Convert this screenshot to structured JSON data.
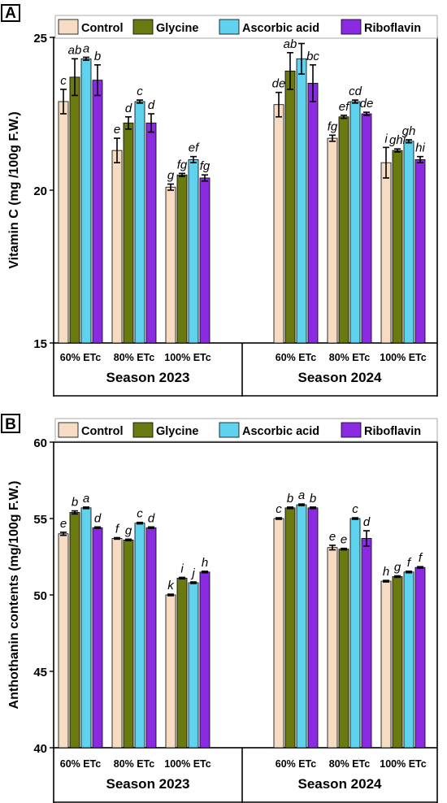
{
  "colors": {
    "Control": "#f6dcc3",
    "Glycine": "#6b7a10",
    "Ascorbic acid": "#5fd2ee",
    "Riboflavin": "#8a2be2"
  },
  "chart_data": [
    {
      "type": "bar",
      "panel_label": "A",
      "ylabel": "Vitamin C (mg /100g F.W.)",
      "ylim": [
        15,
        25
      ],
      "yticks": [
        "15",
        "20",
        "25"
      ],
      "legend_position": "top",
      "groups": [
        {
          "season": "Season 2023",
          "categories": [
            "60% ETc",
            "80% ETc",
            "100% ETc"
          ],
          "series": [
            {
              "name": "Control",
              "values": [
                22.9,
                21.3,
                20.1
              ],
              "errors": [
                0.4,
                0.4,
                0.1
              ],
              "letters": [
                "c",
                "e",
                "g"
              ]
            },
            {
              "name": "Glycine",
              "values": [
                23.7,
                22.2,
                20.5
              ],
              "errors": [
                0.6,
                0.2,
                0.05
              ],
              "letters": [
                "ab",
                "d",
                "fg"
              ]
            },
            {
              "name": "Ascorbic acid",
              "values": [
                24.3,
                22.9,
                21.0
              ],
              "errors": [
                0.05,
                0.05,
                0.1
              ],
              "letters": [
                "a",
                "c",
                "ef"
              ]
            },
            {
              "name": "Riboflavin",
              "values": [
                23.6,
                22.2,
                20.4
              ],
              "errors": [
                0.5,
                0.3,
                0.1
              ],
              "letters": [
                "b",
                "d",
                "fg"
              ]
            }
          ]
        },
        {
          "season": "Season 2024",
          "categories": [
            "60% ETc",
            "80% ETc",
            "100% ETc"
          ],
          "series": [
            {
              "name": "Control",
              "values": [
                22.8,
                21.7,
                20.9
              ],
              "errors": [
                0.4,
                0.1,
                0.5
              ],
              "letters": [
                "de",
                "fg",
                "i"
              ]
            },
            {
              "name": "Glycine",
              "values": [
                23.9,
                22.4,
                21.3
              ],
              "errors": [
                0.6,
                0.05,
                0.05
              ],
              "letters": [
                "ab",
                "ef",
                "ghi"
              ]
            },
            {
              "name": "Ascorbic acid",
              "values": [
                24.3,
                22.9,
                21.6
              ],
              "errors": [
                0.5,
                0.05,
                0.05
              ],
              "letters": [
                "a",
                "cd",
                "gh"
              ]
            },
            {
              "name": "Riboflavin",
              "values": [
                23.5,
                22.5,
                21.0
              ],
              "errors": [
                0.6,
                0.05,
                0.1
              ],
              "letters": [
                "bc",
                "de",
                "hi"
              ]
            }
          ]
        }
      ]
    },
    {
      "type": "bar",
      "panel_label": "B",
      "ylabel": "Anthothanin contents (mg/100g F.W.)",
      "ylim": [
        40,
        60
      ],
      "yticks": [
        "40",
        "45",
        "50",
        "55",
        "60"
      ],
      "legend_position": "top",
      "groups": [
        {
          "season": "Season 2023",
          "categories": [
            "60% ETc",
            "80% ETc",
            "100% ETc"
          ],
          "series": [
            {
              "name": "Control",
              "values": [
                54.0,
                53.7,
                50.0
              ],
              "errors": [
                0.1,
                0.05,
                0.05
              ],
              "letters": [
                "e",
                "f",
                "k"
              ]
            },
            {
              "name": "Glycine",
              "values": [
                55.4,
                53.6,
                51.1
              ],
              "errors": [
                0.1,
                0.05,
                0.05
              ],
              "letters": [
                "b",
                "g",
                "i"
              ]
            },
            {
              "name": "Ascorbic acid",
              "values": [
                55.7,
                54.7,
                50.8
              ],
              "errors": [
                0.05,
                0.05,
                0.05
              ],
              "letters": [
                "a",
                "c",
                "j"
              ]
            },
            {
              "name": "Riboflavin",
              "values": [
                54.4,
                54.4,
                51.5
              ],
              "errors": [
                0.05,
                0.05,
                0.05
              ],
              "letters": [
                "d",
                "d",
                "h"
              ]
            }
          ]
        },
        {
          "season": "Season 2024",
          "categories": [
            "60% ETc",
            "80% ETc",
            "100% ETc"
          ],
          "series": [
            {
              "name": "Control",
              "values": [
                55.0,
                53.1,
                50.9
              ],
              "errors": [
                0.05,
                0.15,
                0.05
              ],
              "letters": [
                "c",
                "e",
                "h"
              ]
            },
            {
              "name": "Glycine",
              "values": [
                55.7,
                53.0,
                51.2
              ],
              "errors": [
                0.05,
                0.05,
                0.05
              ],
              "letters": [
                "b",
                "e",
                "g"
              ]
            },
            {
              "name": "Ascorbic acid",
              "values": [
                55.9,
                55.0,
                51.5
              ],
              "errors": [
                0.05,
                0.05,
                0.05
              ],
              "letters": [
                "a",
                "c",
                "f"
              ]
            },
            {
              "name": "Riboflavin",
              "values": [
                55.7,
                53.7,
                51.8
              ],
              "errors": [
                0.05,
                0.5,
                0.05
              ],
              "letters": [
                "b",
                "d",
                "f"
              ]
            }
          ]
        }
      ]
    }
  ]
}
